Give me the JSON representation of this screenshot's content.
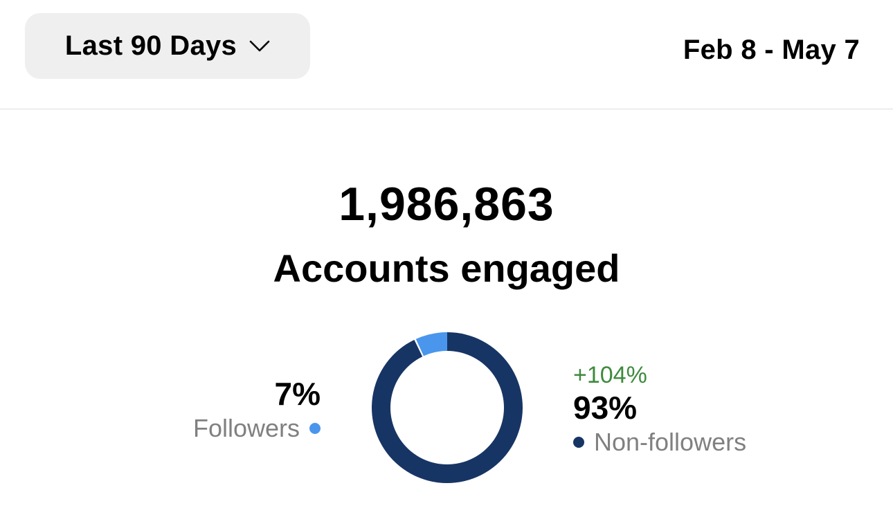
{
  "header": {
    "range_selector": "Last 90 Days",
    "date_range": "Feb 8 - May 7"
  },
  "summary": {
    "total": "1,986,863",
    "label": "Accounts engaged"
  },
  "breakdown": {
    "followers": {
      "percent_text": "7%",
      "label": "Followers",
      "value": 7,
      "color": "#4a96ec"
    },
    "non_followers": {
      "change": "+104%",
      "percent_text": "93%",
      "label": "Non-followers",
      "value": 93,
      "color": "#173564"
    },
    "change_color": "#3e8a3e"
  },
  "icons": {
    "dropdown": "chevron-down-icon"
  }
}
